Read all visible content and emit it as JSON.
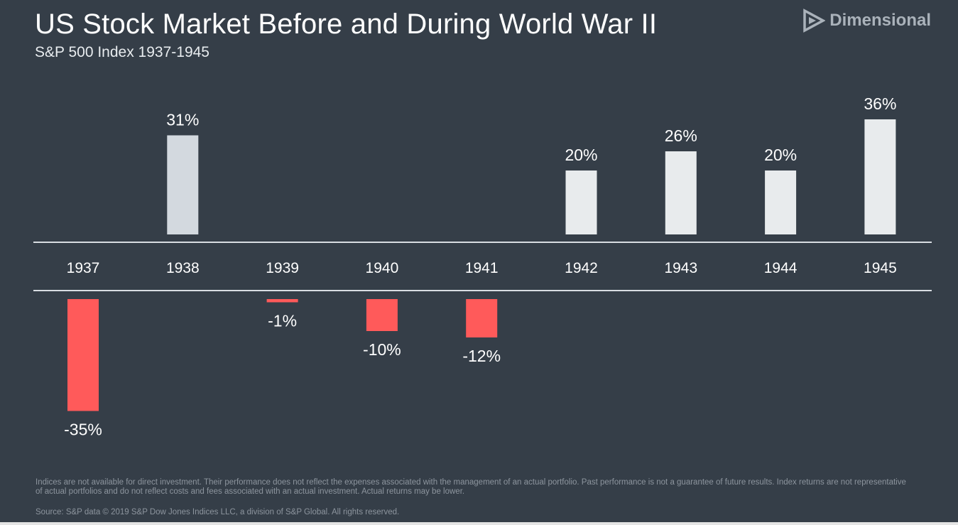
{
  "header": {
    "title": "US Stock Market Before and During World War II",
    "subtitle": "S&P 500 Index 1937-1945",
    "brand": "Dimensional"
  },
  "footer": {
    "disclaimer": "Indices are not available for direct investment. Their performance does not reflect the expenses associated with the management of an actual portfolio. Past performance is not a guarantee of future results. Index returns are not representative of actual portfolios and do not reflect costs and fees associated with an actual investment. Actual returns may be lower.",
    "source": "Source: S&P data © 2019 S&P Dow Jones Indices LLC, a division of S&P Global. All rights reserved."
  },
  "colors": {
    "background": "#353e48",
    "positive": "#e8ebed",
    "positive_1938": "#d3d9df",
    "negative": "#ff5a5a",
    "axis": "#d8dde2"
  },
  "chart_data": {
    "type": "bar",
    "categories": [
      "1937",
      "1938",
      "1939",
      "1940",
      "1941",
      "1942",
      "1943",
      "1944",
      "1945"
    ],
    "values": [
      -35,
      31,
      -1,
      -10,
      -12,
      20,
      26,
      20,
      36
    ],
    "labels": [
      "-35%",
      "31%",
      "-1%",
      "-10%",
      "-12%",
      "20%",
      "26%",
      "20%",
      "36%"
    ],
    "unit": "%",
    "grid": false,
    "legend": "none"
  }
}
